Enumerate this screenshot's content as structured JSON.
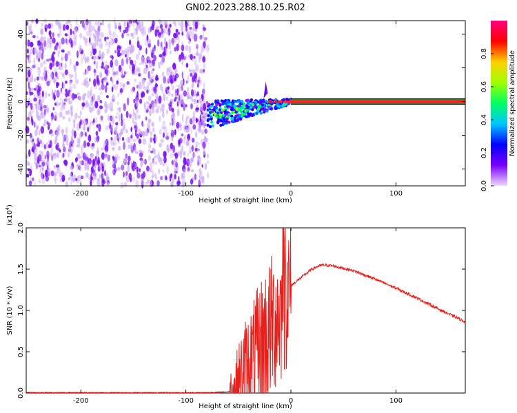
{
  "title": "GN02.2023.288.10.25.R02",
  "chart_data": [
    {
      "type": "heatmap",
      "xlabel": "Height of straight line (km)",
      "ylabel": "Frequency (Hz)",
      "xlim": [
        -252,
        166
      ],
      "ylim": [
        -50,
        48
      ],
      "x_ticks": [
        -200,
        -100,
        0,
        100
      ],
      "y_ticks": [
        -40,
        -20,
        0,
        20,
        40
      ],
      "colorbar": {
        "label": "Normalized spectral amplitude",
        "range": [
          0,
          1
        ],
        "ticks": [
          0.0,
          0.2,
          0.4,
          0.6,
          0.8
        ],
        "colors": [
          "#f0d8ff",
          "#7a00ff",
          "#0000ff",
          "#00c8ff",
          "#00ff60",
          "#a0ff00",
          "#ffd000",
          "#ff0000",
          "#ff0080"
        ]
      },
      "regions": [
        {
          "description_x_range": [
            -252,
            -79
          ],
          "frequency_range": [
            -50,
            48
          ],
          "amplitude_range": [
            0.0,
            0.15
          ]
        },
        {
          "description_x_range": [
            -79,
            0
          ],
          "frequency_center_start": -8,
          "frequency_center_end": 0,
          "amplitude_range": [
            0.1,
            0.7
          ]
        },
        {
          "description_x_range": [
            0,
            166
          ],
          "frequency_center": 0,
          "amplitude": 1.0
        }
      ]
    },
    {
      "type": "line",
      "xlabel": "Height of straight line (km)",
      "ylabel": "SNR (10 * v/v)",
      "y_scale_label": "(x10",
      "y_scale_exp": "4",
      "xlim": [
        -252,
        166
      ],
      "ylim": [
        0,
        2.0
      ],
      "x_ticks": [
        -200,
        -100,
        0,
        100
      ],
      "y_ticks": [
        0.0,
        0.5,
        1.0,
        1.5,
        2.0
      ],
      "color": "#e8201c",
      "series": [
        {
          "x": [
            -252,
            -200,
            -150,
            -100,
            -80,
            -60,
            -55,
            -50,
            -45,
            -40,
            -35,
            -30,
            -25,
            -20,
            -15,
            -10,
            -5,
            0,
            5,
            10,
            15,
            20,
            25,
            30,
            40,
            60,
            80,
            100,
            120,
            140,
            160,
            166
          ],
          "values": [
            0.0,
            0.0,
            0.0,
            0.0,
            0.0,
            0.01,
            0.02,
            0.12,
            0.3,
            0.35,
            0.4,
            0.5,
            0.65,
            0.75,
            0.9,
            0.95,
            1.15,
            1.3,
            1.35,
            1.4,
            1.45,
            1.5,
            1.53,
            1.55,
            1.54,
            1.48,
            1.38,
            1.27,
            1.15,
            1.02,
            0.9,
            0.86
          ]
        }
      ]
    }
  ]
}
